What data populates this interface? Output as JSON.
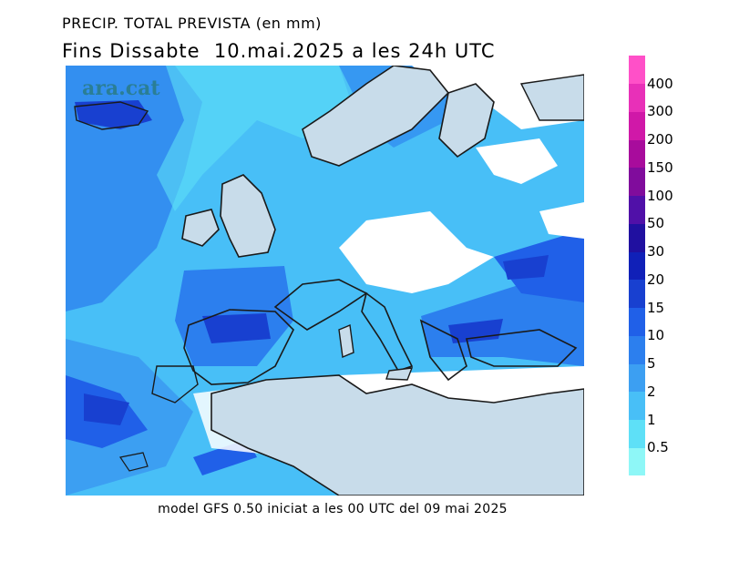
{
  "header": {
    "title_line1": "PRECIP. TOTAL PREVISTA (en mm)",
    "title_line2": "Fins Dissabte  10.mai.2025 a les 24h UTC"
  },
  "watermark": "ara.cat",
  "footer": "model GFS 0.50 iniciat a les 00 UTC del 09 mai 2025",
  "colors": {
    "land": "#c8dcea",
    "coast": "#1a1a1a",
    "scale": [
      "#8ef7f7",
      "#5ee0f7",
      "#48bff7",
      "#3c9ff2",
      "#2c7fee",
      "#2060e8",
      "#1840d0",
      "#1020b8",
      "#2010a0",
      "#5010a8",
      "#800c9c",
      "#a80c9c",
      "#d018a8",
      "#e830b8",
      "#ff50c8"
    ]
  },
  "legend": {
    "labels": [
      "400",
      "300",
      "200",
      "150",
      "100",
      "50",
      "30",
      "20",
      "15",
      "10",
      "5",
      "2",
      "1",
      "0.5"
    ]
  }
}
